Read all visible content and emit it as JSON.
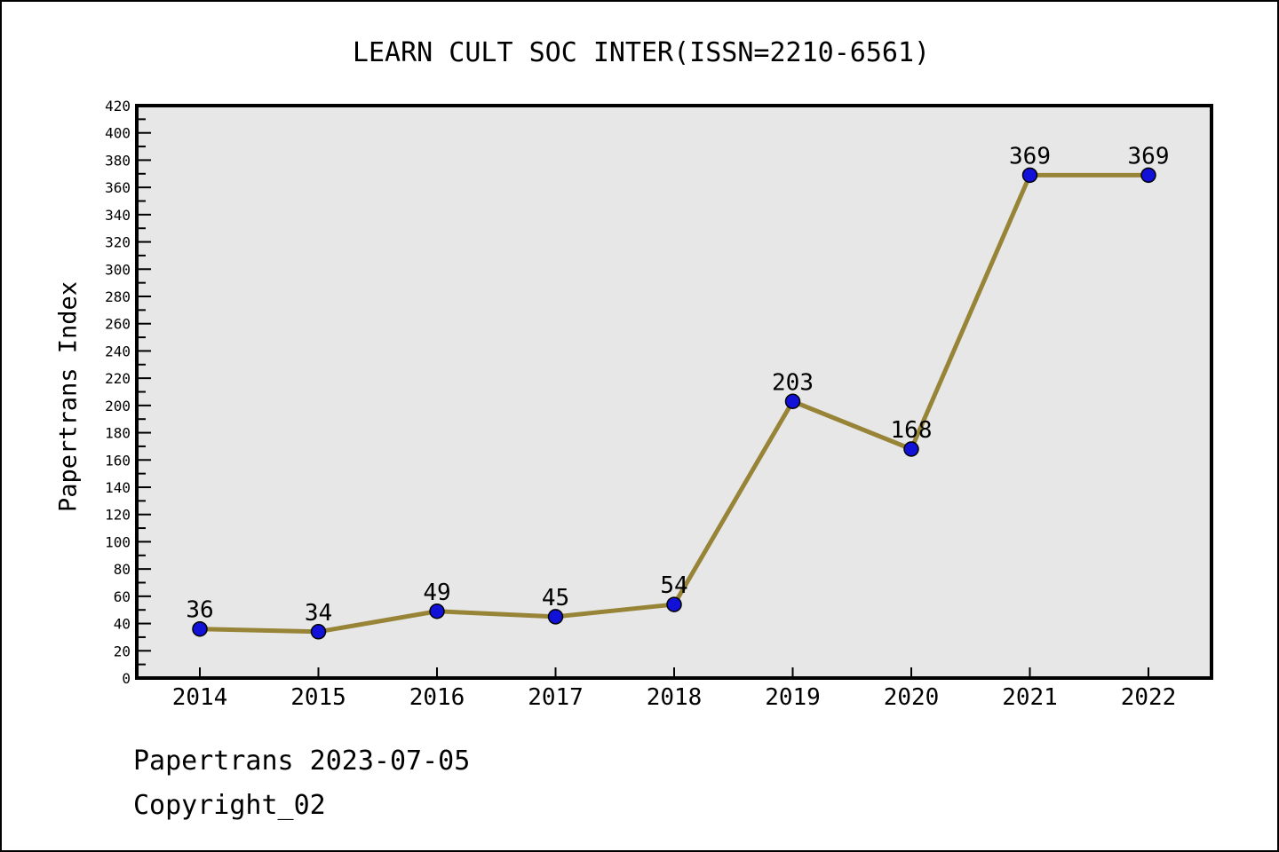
{
  "chart_data": {
    "type": "line",
    "title": "LEARN CULT SOC INTER(ISSN=2210-6561)",
    "categories": [
      "2014",
      "2015",
      "2016",
      "2017",
      "2018",
      "2019",
      "2020",
      "2021",
      "2022"
    ],
    "values": [
      36,
      34,
      49,
      45,
      54,
      203,
      168,
      369,
      369
    ],
    "xlabel": "",
    "ylabel": "Papertrans Index",
    "ylim": [
      0,
      420
    ],
    "ytick_major_step": 20,
    "ytick_minor_step": 10,
    "grid": false,
    "legend": false,
    "line_color": "#978437",
    "marker_color": "#1111d8",
    "marker_edge_color": "#000000",
    "plot_bg_color": "#e7e7e7",
    "axis_color": "#000000"
  },
  "footer": {
    "line1": "Papertrans 2023-07-05",
    "line2": "Copyright_02"
  }
}
